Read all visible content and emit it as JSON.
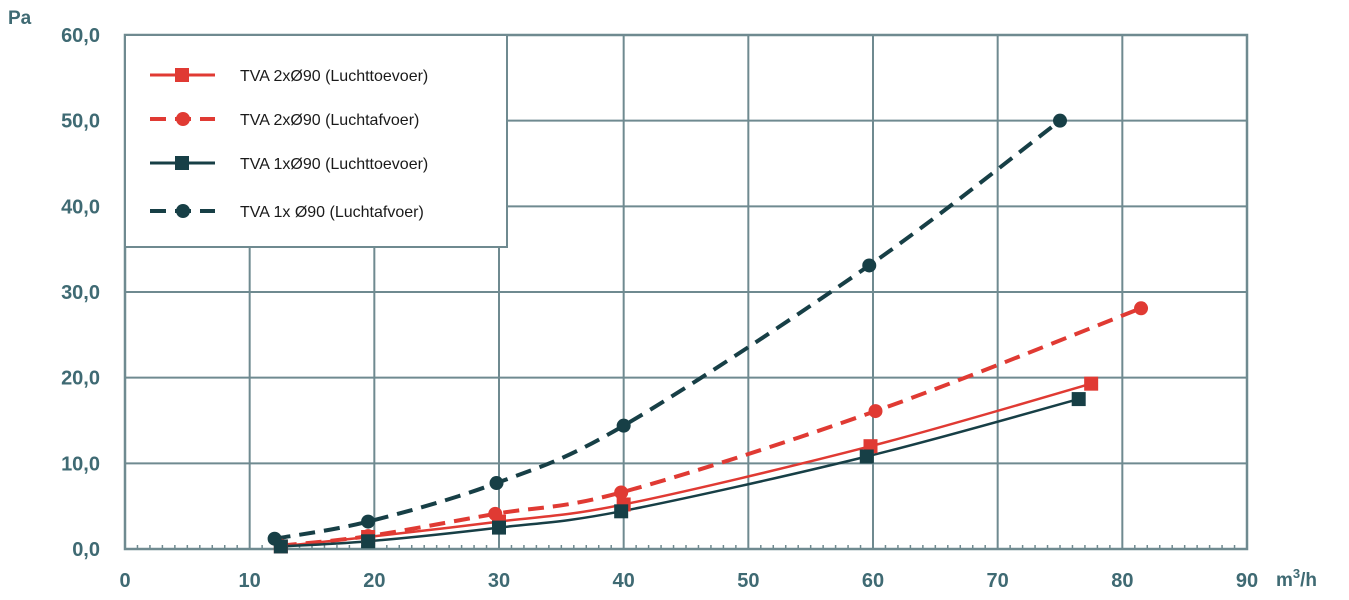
{
  "chart_data": {
    "type": "line",
    "ylabel": "Pa",
    "xlabel": "m³/h",
    "xlabel_base": "m",
    "xlabel_sup": "3",
    "xlabel_tail": "/h",
    "xlim": [
      0,
      90
    ],
    "ylim": [
      0,
      60
    ],
    "x_ticks": [
      0,
      10,
      20,
      30,
      40,
      50,
      60,
      70,
      80,
      90
    ],
    "x_tick_labels": [
      "0",
      "10",
      "20",
      "30",
      "40",
      "50",
      "60",
      "70",
      "80",
      "90"
    ],
    "y_ticks": [
      0,
      10,
      20,
      30,
      40,
      50,
      60
    ],
    "y_tick_labels": [
      "0,0",
      "10,0",
      "20,0",
      "30,0",
      "40,0",
      "50,0",
      "60,0"
    ],
    "grid": true,
    "legend_position": "top-left",
    "series": [
      {
        "name": "TVA 2xØ90 (Luchttoevoer)",
        "color": "#e03a33",
        "line_style": "solid",
        "marker": "square",
        "x": [
          12.5,
          19.5,
          30,
          40,
          59.8,
          77.5
        ],
        "y": [
          0.3,
          1.4,
          3.2,
          5.2,
          12.0,
          19.3
        ]
      },
      {
        "name": "TVA 2xØ90 (Luchtafvoer)",
        "color": "#e03a33",
        "line_style": "dashed",
        "marker": "circle",
        "x": [
          12.5,
          19.5,
          29.7,
          39.8,
          60.2,
          81.5
        ],
        "y": [
          0.4,
          1.5,
          4.1,
          6.6,
          16.1,
          28.1
        ]
      },
      {
        "name": "TVA 1xØ90 (Luchttoevoer)",
        "color": "#173f46",
        "line_style": "solid",
        "marker": "square",
        "x": [
          12.5,
          19.5,
          30,
          39.8,
          59.5,
          76.5
        ],
        "y": [
          0.3,
          0.9,
          2.5,
          4.4,
          10.8,
          17.5
        ]
      },
      {
        "name": "TVA 1x Ø90 (Luchtafvoer)",
        "color": "#173f46",
        "line_style": "dashed",
        "marker": "circle",
        "x": [
          12,
          19.5,
          29.8,
          40,
          59.7,
          75
        ],
        "y": [
          1.2,
          3.2,
          7.7,
          14.4,
          33.1,
          50.0
        ]
      }
    ]
  }
}
